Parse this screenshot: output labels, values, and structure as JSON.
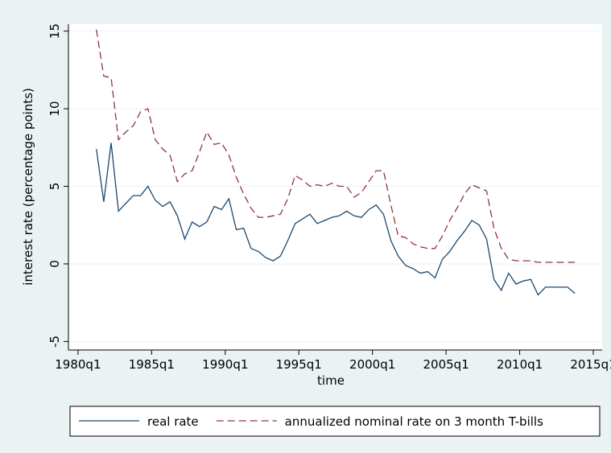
{
  "chart_data": {
    "type": "line",
    "x_label": "time",
    "y_label": "interest rate (percentage points)",
    "x": [
      1981.25,
      1981.75,
      1982.25,
      1982.75,
      1983.25,
      1983.75,
      1984.25,
      1984.75,
      1985.25,
      1985.75,
      1986.25,
      1986.75,
      1987.25,
      1987.75,
      1988.25,
      1988.75,
      1989.25,
      1989.75,
      1990.25,
      1990.75,
      1991.25,
      1991.75,
      1992.25,
      1992.75,
      1993.25,
      1993.75,
      1994.25,
      1994.75,
      1995.25,
      1995.75,
      1996.25,
      1996.75,
      1997.25,
      1997.75,
      1998.25,
      1998.75,
      1999.25,
      1999.75,
      2000.25,
      2000.75,
      2001.25,
      2001.75,
      2002.25,
      2002.75,
      2003.25,
      2003.75,
      2004.25,
      2004.75,
      2005.25,
      2005.75,
      2006.25,
      2006.75,
      2007.25,
      2007.75,
      2008.25,
      2008.75,
      2009.25,
      2009.75,
      2010.25,
      2010.75,
      2011.25,
      2011.75,
      2012.25,
      2012.75,
      2013.25,
      2013.75
    ],
    "series": [
      {
        "name": "real rate",
        "color": "#1a476f",
        "dash": false,
        "values": [
          7.4,
          4.0,
          7.8,
          3.4,
          3.9,
          4.4,
          4.4,
          5.0,
          4.1,
          3.7,
          4.0,
          3.1,
          1.6,
          2.7,
          2.4,
          2.7,
          3.7,
          3.5,
          4.2,
          2.2,
          2.3,
          1.0,
          0.8,
          0.4,
          0.2,
          0.5,
          1.5,
          2.6,
          2.9,
          3.2,
          2.6,
          2.8,
          3.0,
          3.1,
          3.4,
          3.1,
          3.0,
          3.5,
          3.8,
          3.2,
          1.5,
          0.5,
          -0.1,
          -0.3,
          -0.6,
          -0.5,
          -0.9,
          0.3,
          0.8,
          1.5,
          2.1,
          2.8,
          2.5,
          1.6,
          -1.0,
          -1.7,
          -0.6,
          -1.3,
          -1.1,
          -1.0,
          -2.0,
          -1.5,
          -1.5,
          -1.5,
          -1.5,
          -1.9
        ]
      },
      {
        "name": "annualized nominal rate on 3 month T-bills",
        "color": "#90353b",
        "dash": true,
        "values": [
          15.1,
          12.1,
          12.0,
          8.0,
          8.5,
          8.9,
          9.8,
          10.0,
          8.0,
          7.4,
          7.0,
          5.3,
          5.8,
          6.0,
          7.2,
          8.5,
          7.7,
          7.8,
          7.0,
          5.6,
          4.5,
          3.6,
          3.0,
          3.0,
          3.1,
          3.2,
          4.2,
          5.7,
          5.4,
          5.0,
          5.1,
          5.0,
          5.2,
          5.0,
          5.0,
          4.3,
          4.6,
          5.3,
          6.0,
          6.0,
          3.8,
          1.8,
          1.7,
          1.3,
          1.1,
          1.0,
          1.0,
          1.8,
          2.8,
          3.6,
          4.5,
          5.1,
          4.9,
          4.7,
          2.3,
          1.0,
          0.3,
          0.2,
          0.2,
          0.2,
          0.1,
          0.1,
          0.1,
          0.1,
          0.1,
          0.1
        ]
      }
    ],
    "xlim": [
      1979.35,
      2015.6
    ],
    "ylim": [
      -5.55,
      15.45
    ],
    "xticks": [
      {
        "value": 1980,
        "label": "1980q1"
      },
      {
        "value": 1985,
        "label": "1985q1"
      },
      {
        "value": 1990,
        "label": "1990q1"
      },
      {
        "value": 1995,
        "label": "1995q1"
      },
      {
        "value": 2000,
        "label": "2000q1"
      },
      {
        "value": 2005,
        "label": "2005q1"
      },
      {
        "value": 2010,
        "label": "2010q1"
      },
      {
        "value": 2015,
        "label": "2015q1"
      }
    ],
    "yticks": [
      -5,
      0,
      5,
      10,
      15
    ],
    "grid": true,
    "legend": "bottom"
  }
}
